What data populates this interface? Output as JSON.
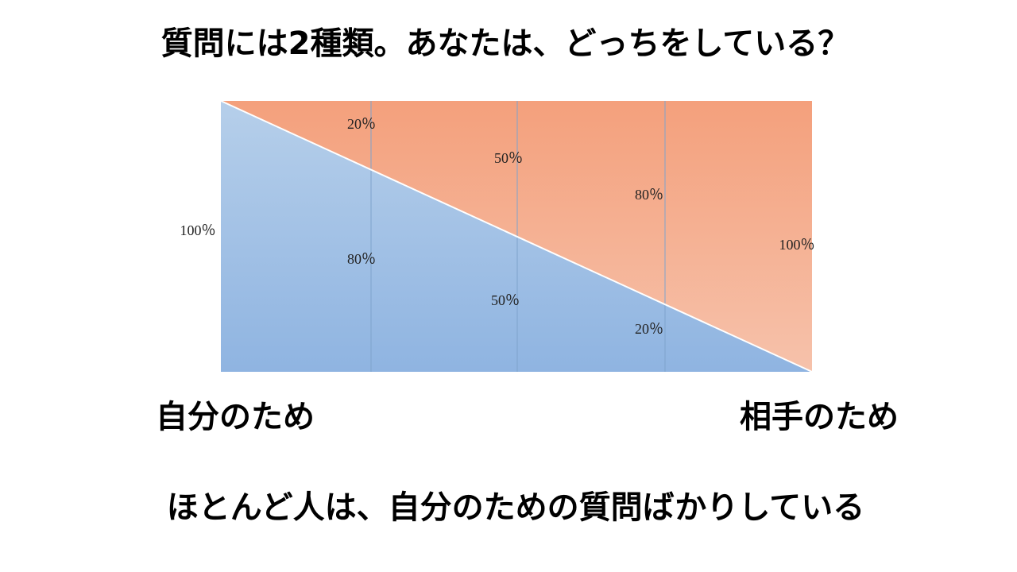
{
  "header": {
    "title": "質問には2種類。あなたは、どっちをしている？"
  },
  "diagram": {
    "left_total": "100％",
    "right_total": "100％",
    "upper_labels": [
      "20％",
      "50％",
      "80％"
    ],
    "lower_labels": [
      "80％",
      "50％",
      "20％"
    ],
    "left_end": "自分のため",
    "right_end": "相手のため"
  },
  "footer": {
    "caption": "ほとんど人は、自分のための質問ばかりしている"
  }
}
